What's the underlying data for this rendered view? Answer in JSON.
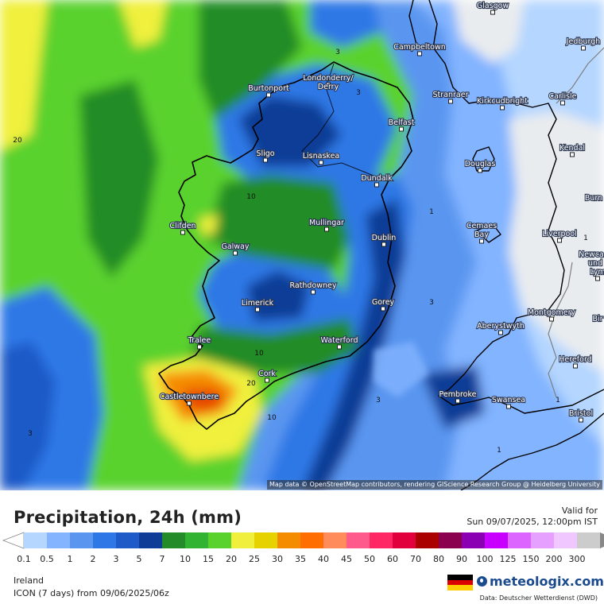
{
  "map": {
    "city_labels": [
      {
        "name": "Glasgow"
      },
      {
        "name": "Campbeltown"
      },
      {
        "name": "Jedburgh"
      },
      {
        "name": "Londonderry/"
      },
      {
        "name": "Derry"
      },
      {
        "name": "Burtonport"
      },
      {
        "name": "Stranraer"
      },
      {
        "name": "Kirkcudbright"
      },
      {
        "name": "Carlisle"
      },
      {
        "name": "Belfast"
      },
      {
        "name": "Sligo"
      },
      {
        "name": "Lisnaskea"
      },
      {
        "name": "Kendal"
      },
      {
        "name": "Douglas"
      },
      {
        "name": "Dundalk"
      },
      {
        "name": "Burn"
      },
      {
        "name": "Clifden"
      },
      {
        "name": "Mullingar"
      },
      {
        "name": "Cemaes"
      },
      {
        "name": "Bay"
      },
      {
        "name": "Liverpool"
      },
      {
        "name": "Galway"
      },
      {
        "name": "Dublin"
      },
      {
        "name": "Newca"
      },
      {
        "name": "und"
      },
      {
        "name": "Lym"
      },
      {
        "name": "Rathdowney"
      },
      {
        "name": "Limerick"
      },
      {
        "name": "Gorey"
      },
      {
        "name": "Montgomery"
      },
      {
        "name": "Aberystwyth"
      },
      {
        "name": "Bir"
      },
      {
        "name": "Tralee"
      },
      {
        "name": "Waterford"
      },
      {
        "name": "Hereford"
      },
      {
        "name": "Cork"
      },
      {
        "name": "Castletownbere"
      },
      {
        "name": "Pembroke"
      },
      {
        "name": "Swansea"
      },
      {
        "name": "Bristol"
      }
    ],
    "contour_labels": [
      "20",
      "3",
      "3",
      "10",
      "1",
      "1",
      "10",
      "3",
      "20",
      "10",
      "3",
      "1",
      "3",
      "1"
    ],
    "attribution": "Map data © OpenStreetMap contributors, rendering GIScience Research Group @ Heidelberg University"
  },
  "header": {
    "title": "Precipitation, 24h (mm)",
    "valid_label": "Valid for",
    "valid_time": "Sun 09/07/2025, 12:00pm IST"
  },
  "legend": {
    "levels": [
      "0.1",
      "0.5",
      "1",
      "2",
      "3",
      "5",
      "7",
      "10",
      "15",
      "20",
      "25",
      "30",
      "35",
      "40",
      "45",
      "50",
      "60",
      "70",
      "80",
      "90",
      "100",
      "125",
      "150",
      "200",
      "300"
    ],
    "colors": [
      "#b4d6ff",
      "#82b4ff",
      "#5a96f0",
      "#2d78e6",
      "#1e5ac8",
      "#0f3c96",
      "#238c28",
      "#32b432",
      "#5ad22d",
      "#f0f03c",
      "#e6d200",
      "#f58c00",
      "#ff6e00",
      "#ff8c5a",
      "#ff5a8c",
      "#ff2864",
      "#e1003c",
      "#aa0000",
      "#8c0050",
      "#8c00b4",
      "#c800ff",
      "#dc64ff",
      "#e6a0ff",
      "#f0c8ff",
      "#cccccc"
    ]
  },
  "footer": {
    "region": "Ireland",
    "model_line": "ICON (7 days)  from  09/06/2025/06z",
    "brand": "meteologix.com",
    "data_source": "Data: Deutscher Wetterdienst  (DWD)"
  },
  "colors": {
    "land_gray": "#e9ecef",
    "coast": "#000000",
    "border": "#808080"
  }
}
